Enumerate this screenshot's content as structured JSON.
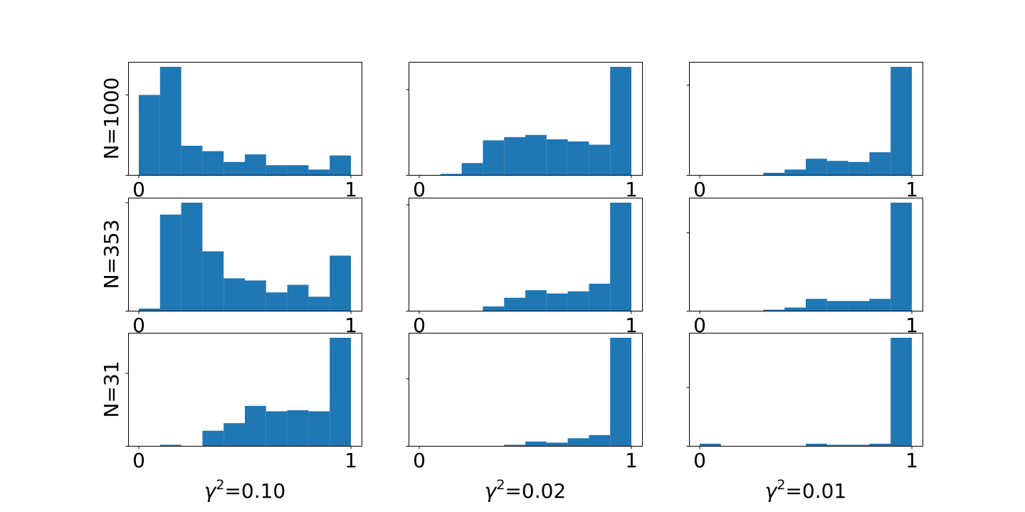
{
  "chart_data": {
    "type": "bar",
    "layout": "3x3 grid of histograms",
    "bins": [
      0.0,
      0.1,
      0.2,
      0.3,
      0.4,
      0.5,
      0.6,
      0.7,
      0.8,
      0.9,
      1.0
    ],
    "xlim": [
      0,
      1
    ],
    "xticks": [
      "0",
      "1"
    ],
    "color": "#1f77b4",
    "row_labels": [
      "N=1000",
      "N=353",
      "N=31"
    ],
    "col_labels": [
      {
        "gamma": "γ",
        "sup": "2",
        "value": "=0.10"
      },
      {
        "gamma": "γ",
        "sup": "2",
        "value": "=0.02"
      },
      {
        "gamma": "γ",
        "sup": "2",
        "value": "=0.01"
      }
    ],
    "panels": [
      [
        {
          "values": [
            0.74,
            1.0,
            0.27,
            0.22,
            0.12,
            0.19,
            0.09,
            0.09,
            0.05,
            0.18
          ],
          "ytick_fraction": 0.74
        },
        {
          "values": [
            0,
            0.01,
            0.11,
            0.32,
            0.35,
            0.37,
            0.33,
            0.31,
            0.28,
            1.0
          ],
          "ytick_fraction": 0.79
        },
        {
          "values": [
            0,
            0,
            0,
            0.02,
            0.05,
            0.15,
            0.13,
            0.12,
            0.21,
            1.0
          ],
          "ytick_fraction": 0.83
        }
      ],
      [
        {
          "values": [
            0.02,
            0.89,
            1.0,
            0.55,
            0.3,
            0.28,
            0.17,
            0.24,
            0.13,
            0.51
          ],
          "ytick_fraction": 1.0
        },
        {
          "values": [
            0,
            0,
            0,
            0.04,
            0.12,
            0.19,
            0.16,
            0.18,
            0.25,
            1.0
          ],
          "ytick_fraction": 0.98
        },
        {
          "values": [
            0,
            0,
            0,
            0.01,
            0.03,
            0.11,
            0.09,
            0.09,
            0.11,
            1.0
          ],
          "ytick_fraction": 0.72
        }
      ],
      [
        {
          "values": [
            0,
            0.01,
            0,
            0.14,
            0.21,
            0.37,
            0.32,
            0.33,
            0.32,
            1.0
          ],
          "ytick_fraction": 0.67
        },
        {
          "values": [
            0,
            0,
            0,
            0,
            0.01,
            0.04,
            0.03,
            0.07,
            0.1,
            1.0
          ],
          "ytick_fraction": 0.62
        },
        {
          "values": [
            0.02,
            0,
            0,
            0,
            0,
            0.02,
            0.01,
            0.01,
            0.02,
            1.0
          ],
          "ytick_fraction": 0.54
        }
      ]
    ]
  }
}
